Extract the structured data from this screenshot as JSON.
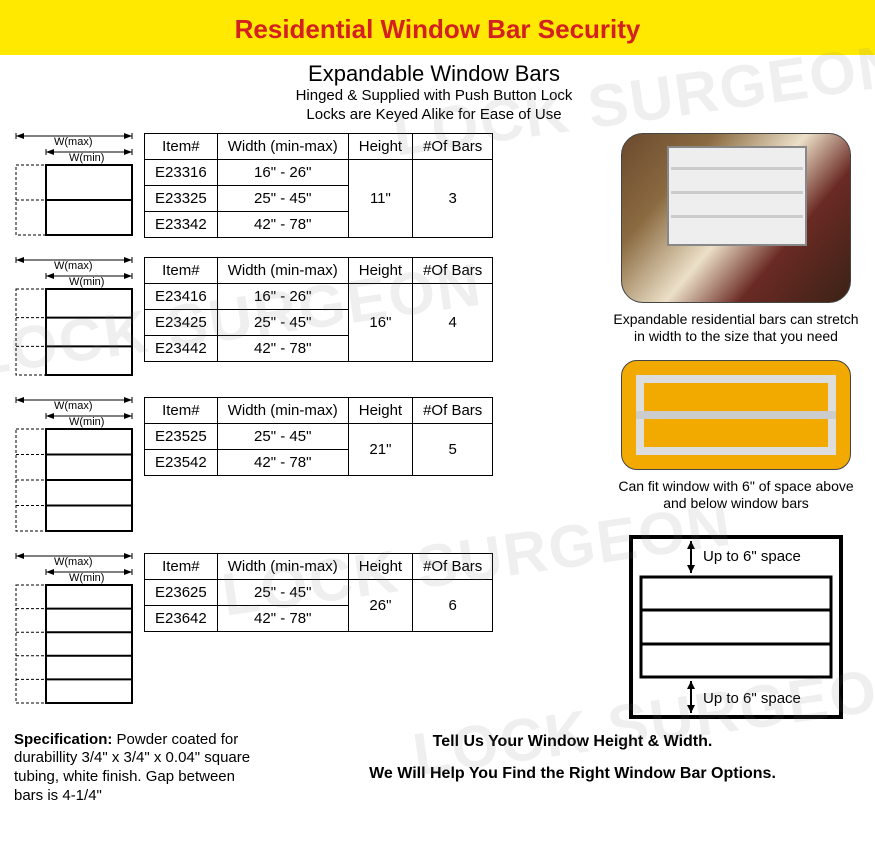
{
  "header": {
    "title": "Residential Window Bar Security"
  },
  "section": {
    "title": "Expandable Window Bars",
    "sub1": "Hinged & Supplied with Push Button Lock",
    "sub2": "Locks are Keyed Alike for Ease of Use"
  },
  "table_headers": {
    "item": "Item#",
    "width": "Width (min-max)",
    "height": "Height",
    "bars": "#Of Bars"
  },
  "diagram_labels": {
    "wmax": "W(max)",
    "wmin": "W(min)"
  },
  "tables": [
    {
      "rows": [
        {
          "item": "E23316",
          "width": "16\" - 26\""
        },
        {
          "item": "E23325",
          "width": "25\" - 45\""
        },
        {
          "item": "E23342",
          "width": "42\" - 78\""
        }
      ],
      "height": "11\"",
      "bars": "3",
      "diagram_bars": 3,
      "diagram_h": 70
    },
    {
      "rows": [
        {
          "item": "E23416",
          "width": "16\" - 26\""
        },
        {
          "item": "E23425",
          "width": "25\" - 45\""
        },
        {
          "item": "E23442",
          "width": "42\" - 78\""
        }
      ],
      "height": "16\"",
      "bars": "4",
      "diagram_bars": 4,
      "diagram_h": 86
    },
    {
      "rows": [
        {
          "item": "E23525",
          "width": "25\" - 45\""
        },
        {
          "item": "E23542",
          "width": "42\" - 78\""
        }
      ],
      "height": "21\"",
      "bars": "5",
      "diagram_bars": 5,
      "diagram_h": 102
    },
    {
      "rows": [
        {
          "item": "E23625",
          "width": "25\" - 45\""
        },
        {
          "item": "E23642",
          "width": "42\" - 78\""
        }
      ],
      "height": "26\"",
      "bars": "6",
      "diagram_bars": 6,
      "diagram_h": 118
    }
  ],
  "photo1_caption": "Expandable residential bars can stretch in width to the size that you need",
  "photo2_caption": "Can fit window with 6\" of space above and below window bars",
  "space_label": "Up to 6\" space",
  "spec": {
    "label": "Specification:",
    "text": " Powder coated for durabillity 3/4\" x 3/4\" x 0.04\" square tubing, white finish. Gap between bars is 4-1/4\""
  },
  "help": {
    "line1": "Tell Us Your Window Height & Width.",
    "line2": "We Will Help You Find the Right Window Bar Options."
  },
  "colors": {
    "yellow": "#ffe900",
    "red": "#d32020",
    "black": "#000000"
  },
  "watermark": "LOCK SURGEON"
}
